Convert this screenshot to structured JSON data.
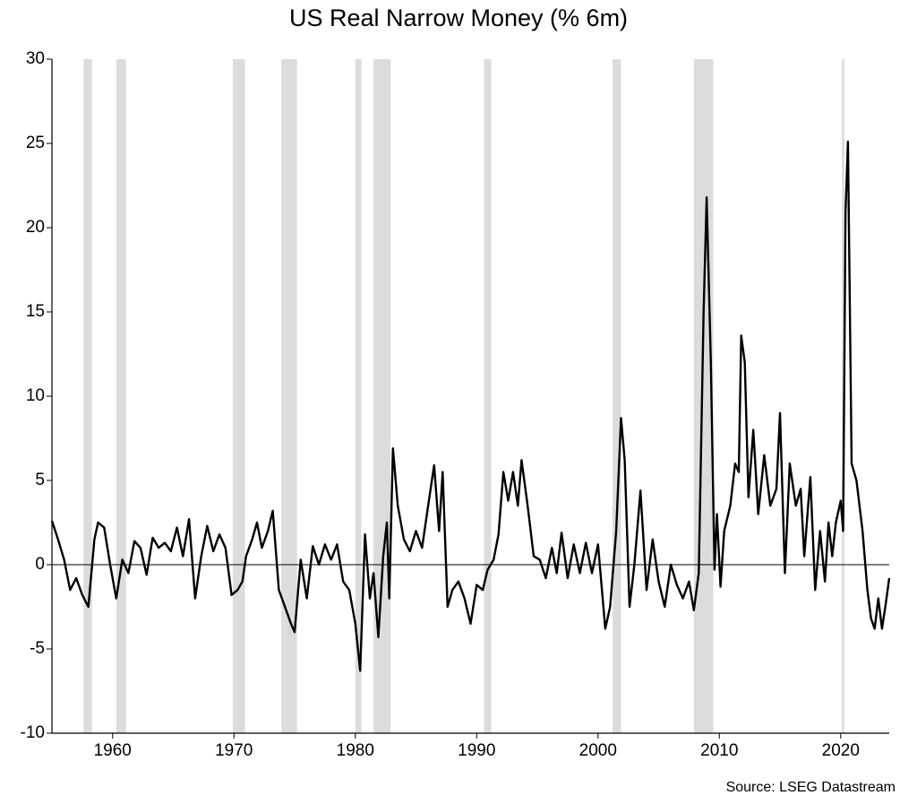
{
  "chart_data": {
    "type": "line",
    "title": "US Real Narrow Money (% 6m)",
    "source": "Source: LSEG Datastream",
    "xlim": [
      1955,
      2024
    ],
    "xticks": [
      1960,
      1970,
      1980,
      1990,
      2000,
      2010,
      2020
    ],
    "ylim": [
      -10,
      30
    ],
    "yticks": [
      -10,
      -5,
      0,
      5,
      10,
      15,
      20,
      25,
      30
    ],
    "recessions": [
      [
        1957.6,
        1958.3
      ],
      [
        1960.3,
        1961.1
      ],
      [
        1969.9,
        1970.9
      ],
      [
        1973.9,
        1975.2
      ],
      [
        1980.0,
        1980.5
      ],
      [
        1981.5,
        1982.9
      ],
      [
        1990.6,
        1991.2
      ],
      [
        2001.2,
        2001.9
      ],
      [
        2007.9,
        2009.5
      ],
      [
        2020.1,
        2020.3
      ]
    ],
    "recession_color": "#dcdcdc",
    "series": [
      {
        "color": "#000000",
        "x": [
          1955.0,
          1955.5,
          1956.0,
          1956.5,
          1957.0,
          1957.5,
          1958.0,
          1958.5,
          1958.8,
          1959.3,
          1959.8,
          1960.3,
          1960.8,
          1961.3,
          1961.8,
          1962.3,
          1962.8,
          1963.3,
          1963.8,
          1964.3,
          1964.8,
          1965.3,
          1965.8,
          1966.3,
          1966.8,
          1967.3,
          1967.8,
          1968.3,
          1968.8,
          1969.3,
          1969.8,
          1970.3,
          1970.7,
          1971.0,
          1971.5,
          1971.9,
          1972.3,
          1972.8,
          1973.2,
          1973.7,
          1974.2,
          1974.7,
          1975.0,
          1975.5,
          1976.0,
          1976.5,
          1977.0,
          1977.5,
          1978.0,
          1978.5,
          1979.0,
          1979.5,
          1980.0,
          1980.4,
          1980.8,
          1981.2,
          1981.5,
          1981.9,
          1982.3,
          1982.6,
          1982.8,
          1983.1,
          1983.5,
          1984.0,
          1984.5,
          1985.0,
          1985.5,
          1986.0,
          1986.5,
          1986.9,
          1987.2,
          1987.6,
          1988.0,
          1988.5,
          1989.0,
          1989.5,
          1990.0,
          1990.5,
          1990.9,
          1991.4,
          1991.8,
          1992.2,
          1992.6,
          1993.0,
          1993.4,
          1993.7,
          1994.2,
          1994.7,
          1995.2,
          1995.7,
          1996.2,
          1996.6,
          1997.0,
          1997.5,
          1998.0,
          1998.5,
          1999.0,
          1999.5,
          2000.0,
          2000.6,
          2001.0,
          2001.5,
          2001.9,
          2002.2,
          2002.6,
          2003.0,
          2003.5,
          2004.0,
          2004.5,
          2005.0,
          2005.5,
          2006.0,
          2006.5,
          2007.0,
          2007.5,
          2007.9,
          2008.3,
          2008.7,
          2008.95,
          2009.3,
          2009.6,
          2009.8,
          2010.1,
          2010.4,
          2010.9,
          2011.3,
          2011.6,
          2011.8,
          2012.1,
          2012.4,
          2012.8,
          2013.2,
          2013.7,
          2014.2,
          2014.7,
          2015.0,
          2015.4,
          2015.8,
          2016.3,
          2016.7,
          2017.0,
          2017.5,
          2017.9,
          2018.3,
          2018.7,
          2019.0,
          2019.3,
          2019.6,
          2020.0,
          2020.2,
          2020.4,
          2020.6,
          2020.9,
          2021.3,
          2021.8,
          2022.2,
          2022.5,
          2022.8,
          2023.1,
          2023.4,
          2023.7,
          2024.0
        ],
        "values": [
          2.6,
          1.5,
          0.3,
          -1.5,
          -0.8,
          -1.8,
          -2.5,
          1.5,
          2.5,
          2.2,
          0,
          -2.0,
          0.3,
          -0.5,
          1.4,
          1.0,
          -0.6,
          1.6,
          1.0,
          1.3,
          0.8,
          2.2,
          0.5,
          2.7,
          -2.0,
          0.5,
          2.3,
          0.8,
          1.8,
          1.0,
          -1.8,
          -1.5,
          -1.0,
          0.5,
          1.5,
          2.5,
          1.0,
          2.0,
          3.2,
          -1.5,
          -2.5,
          -3.5,
          -4.0,
          0.3,
          -2.0,
          1.1,
          0,
          1.2,
          0.3,
          1.2,
          -1.0,
          -1.5,
          -3.5,
          -6.3,
          1.8,
          -2.0,
          -0.5,
          -4.3,
          0.5,
          2.5,
          -2.0,
          6.9,
          3.5,
          1.5,
          0.8,
          2.0,
          1.0,
          3.5,
          5.9,
          2.0,
          5.5,
          -2.5,
          -1.5,
          -1.0,
          -2.0,
          -3.5,
          -1.2,
          -1.5,
          -0.3,
          0.3,
          1.8,
          5.5,
          3.8,
          5.5,
          3.5,
          6.2,
          3.5,
          0.5,
          0.3,
          -0.8,
          1.0,
          -0.5,
          1.9,
          -0.8,
          1.2,
          -0.5,
          1.3,
          -0.5,
          1.2,
          -3.8,
          -2.5,
          2.0,
          8.7,
          6.2,
          -2.5,
          0,
          4.4,
          -1.5,
          1.5,
          -1.0,
          -2.5,
          0,
          -1.2,
          -2.0,
          -1.0,
          -2.7,
          -0.5,
          15.0,
          21.8,
          12,
          -0.3,
          3.0,
          -1.3,
          2.0,
          3.5,
          6.0,
          5.5,
          13.6,
          12.0,
          4.0,
          8.0,
          3.0,
          6.5,
          3.5,
          4.5,
          9.0,
          -0.5,
          6.0,
          3.5,
          4.5,
          0.5,
          5.2,
          -1.5,
          2.0,
          -1.0,
          2.5,
          0.5,
          2.5,
          3.8,
          2.0,
          21.0,
          25.1,
          6.0,
          5.0,
          2.0,
          -1.5,
          -3.2,
          -3.8,
          -2.0,
          -3.8,
          -2.4,
          -0.8
        ]
      }
    ]
  }
}
